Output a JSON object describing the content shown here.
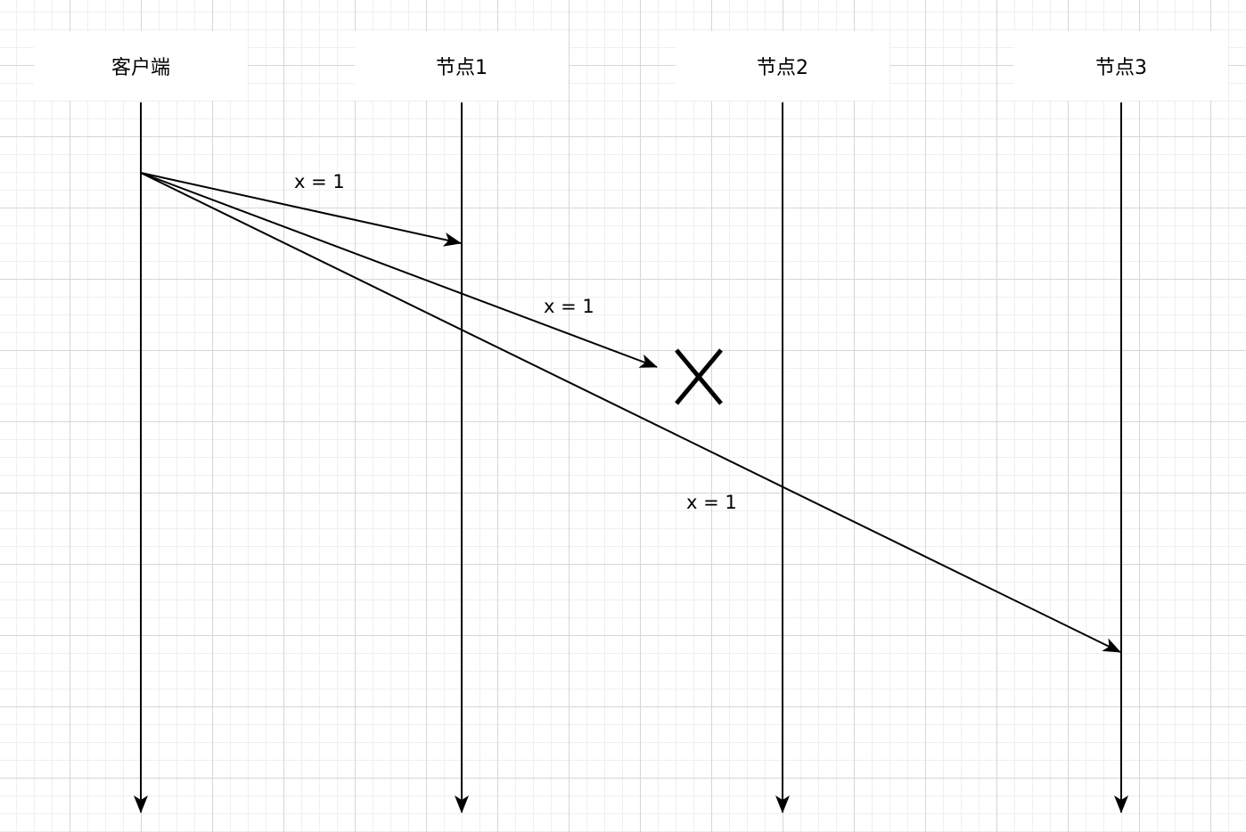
{
  "participants": [
    {
      "id": "client",
      "label": "客户端"
    },
    {
      "id": "node1",
      "label": "节点1"
    },
    {
      "id": "node2",
      "label": "节点2"
    },
    {
      "id": "node3",
      "label": "节点3"
    }
  ],
  "messages": [
    {
      "from": "客户端",
      "to": "节点1",
      "label": "x = 1",
      "delivered": true
    },
    {
      "from": "客户端",
      "to": "节点2",
      "label": "x = 1",
      "delivered": false
    },
    {
      "from": "客户端",
      "to": "节点3",
      "label": "x = 1",
      "delivered": true
    }
  ],
  "failure_marker": {
    "icon": "cross-icon",
    "meaning": "message to 节点2 lost"
  }
}
